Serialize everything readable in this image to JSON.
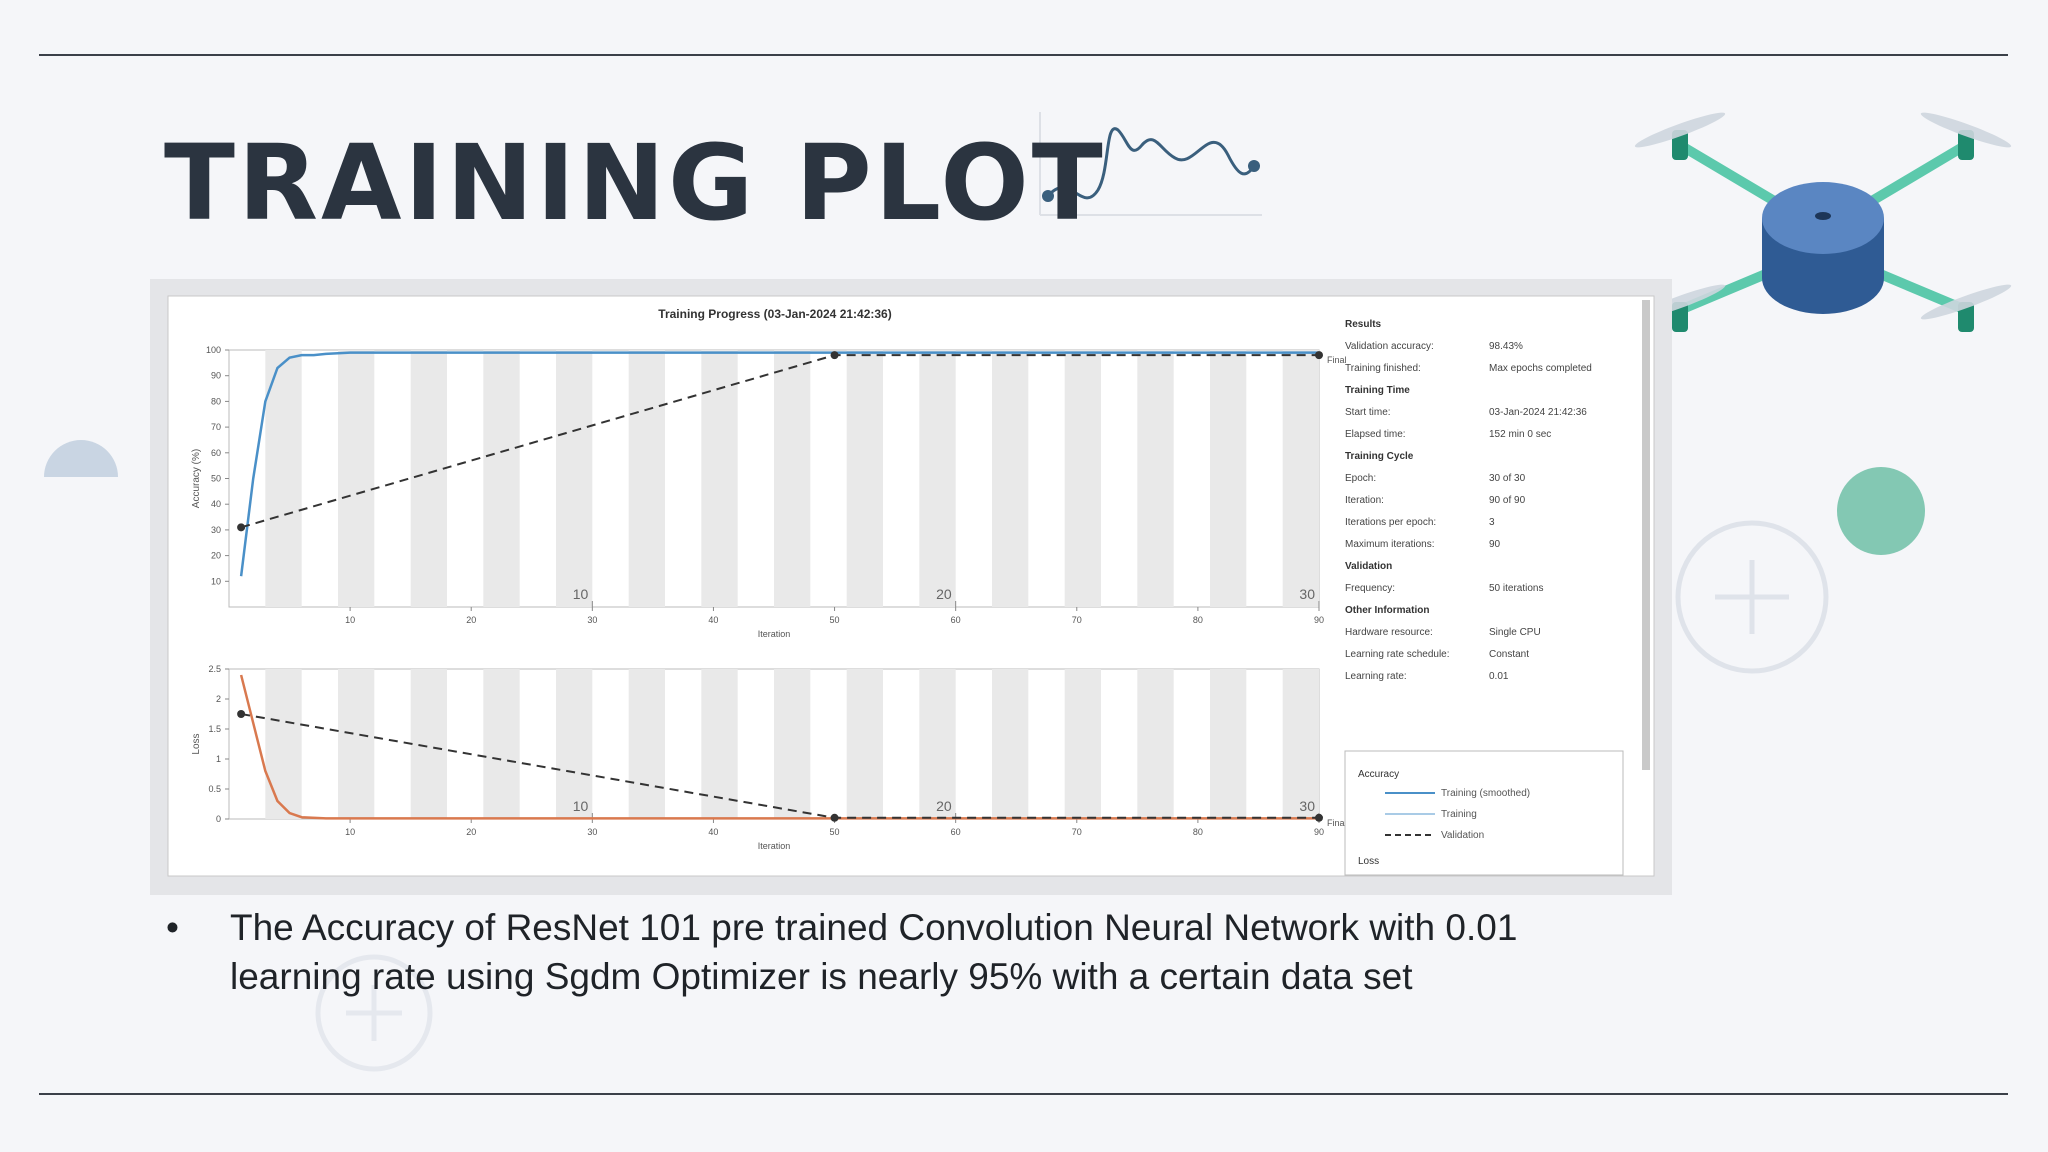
{
  "header": {
    "title": "TRAINING PLOT"
  },
  "bullet": {
    "text": "The Accuracy of ResNet 101 pre trained Convolution Neural Network with 0.01 learning rate using Sgdm Optimizer is nearly 95% with a certain data set"
  },
  "screenshot": {
    "title": "Training Progress (03-Jan-2024 21:42:36)",
    "results": [
      {
        "heading": "Results",
        "rows": [
          [
            "Validation accuracy:",
            "98.43%"
          ],
          [
            "Training finished:",
            "Max epochs completed"
          ]
        ]
      },
      {
        "heading": "Training Time",
        "rows": [
          [
            "Start time:",
            "03-Jan-2024 21:42:36"
          ],
          [
            "Elapsed time:",
            "152 min 0 sec"
          ]
        ]
      },
      {
        "heading": "Training Cycle",
        "rows": [
          [
            "Epoch:",
            "30 of 30"
          ],
          [
            "Iteration:",
            "90 of 90"
          ],
          [
            "Iterations per epoch:",
            "3"
          ],
          [
            "Maximum iterations:",
            "90"
          ]
        ]
      },
      {
        "heading": "Validation",
        "rows": [
          [
            "Frequency:",
            "50 iterations"
          ]
        ]
      },
      {
        "heading": "Other Information",
        "rows": [
          [
            "Hardware resource:",
            "Single CPU"
          ],
          [
            "Learning rate schedule:",
            "Constant"
          ],
          [
            "Learning rate:",
            "0.01"
          ]
        ]
      }
    ],
    "legend": {
      "heading": "Accuracy",
      "items": [
        "Training (smoothed)",
        "Training",
        "Validation"
      ],
      "next_heading": "Loss"
    }
  },
  "chart_data": [
    {
      "type": "line",
      "y_label": "Accuracy (%)",
      "x_label": "Iteration",
      "xlim": [
        0,
        90
      ],
      "ylim": [
        0,
        100
      ],
      "xticks": [
        10,
        20,
        30,
        40,
        50,
        60,
        70,
        80,
        90
      ],
      "yticks": [
        10,
        20,
        30,
        40,
        50,
        60,
        70,
        80,
        90,
        100
      ],
      "epoch_ticks": [
        {
          "value": 30,
          "label": "10"
        },
        {
          "value": 60,
          "label": "20"
        },
        {
          "value": 90,
          "label": "30"
        }
      ],
      "final_label": "Final",
      "series": [
        {
          "name": "Training (smoothed)",
          "color": "#4a90c8",
          "x": [
            1,
            2,
            3,
            4,
            5,
            6,
            7,
            8,
            10,
            90
          ],
          "values": [
            12,
            50,
            80,
            93,
            97,
            98,
            98,
            98.5,
            99,
            99
          ]
        },
        {
          "name": "Validation",
          "color": "#333333",
          "x": [
            1,
            50,
            90
          ],
          "values": [
            31,
            98,
            98
          ]
        }
      ]
    },
    {
      "type": "line",
      "y_label": "Loss",
      "x_label": "Iteration",
      "xlim": [
        0,
        90
      ],
      "ylim": [
        0,
        2.5
      ],
      "xticks": [
        10,
        20,
        30,
        40,
        50,
        60,
        70,
        80,
        90
      ],
      "yticks": [
        0,
        0.5,
        1,
        1.5,
        2,
        2.5
      ],
      "epoch_ticks": [
        {
          "value": 30,
          "label": "10"
        },
        {
          "value": 60,
          "label": "20"
        },
        {
          "value": 90,
          "label": "30"
        }
      ],
      "final_label": "Final",
      "series": [
        {
          "name": "Training (smoothed)",
          "color": "#d9794f",
          "x": [
            1,
            2,
            3,
            4,
            5,
            6,
            8,
            90
          ],
          "values": [
            2.4,
            1.6,
            0.8,
            0.3,
            0.1,
            0.03,
            0.01,
            0.01
          ]
        },
        {
          "name": "Validation",
          "color": "#333333",
          "x": [
            1,
            50,
            90
          ],
          "values": [
            1.75,
            0.02,
            0.02
          ]
        }
      ]
    }
  ]
}
